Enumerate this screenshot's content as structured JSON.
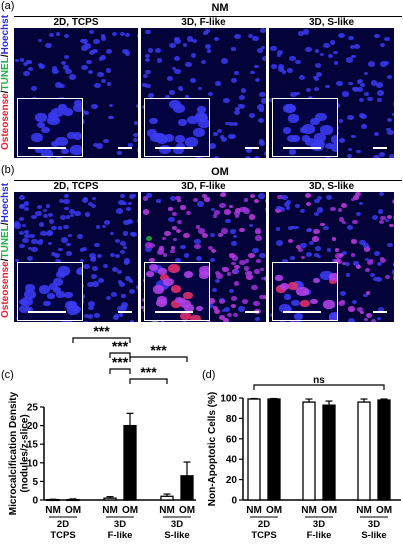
{
  "colors": {
    "osteosense": "#e8202a",
    "tunel": "#20b040",
    "hoechst": "#2b2bd8",
    "nucleus": "#3a3af0",
    "background": "#03033a",
    "bar_filled": "#000000",
    "bar_open": "#ffffff"
  },
  "panel_a": {
    "letter": "(a)",
    "condition": "NM",
    "stain_label": {
      "osteosense": "Osteosense",
      "slash1": "/",
      "tunel": "TUNEL",
      "slash2": "/",
      "hoechst": "Hoechst"
    },
    "images": [
      {
        "title": "2D, TCPS",
        "nucleus_density": 0.55,
        "red_signal": 0.0,
        "green_signal": 0.0
      },
      {
        "title": "3D, F-like",
        "nucleus_density": 0.6,
        "red_signal": 0.0,
        "green_signal": 0.0
      },
      {
        "title": "3D, S-like",
        "nucleus_density": 0.6,
        "red_signal": 0.0,
        "green_signal": 0.0
      }
    ]
  },
  "panel_b": {
    "letter": "(b)",
    "condition": "OM",
    "stain_label": {
      "osteosense": "Osteosense",
      "slash1": "/",
      "tunel": "TUNEL",
      "slash2": "/",
      "hoechst": "Hoechst"
    },
    "images": [
      {
        "title": "2D, TCPS",
        "nucleus_density": 0.9,
        "red_signal": 0.0,
        "green_signal": 0.0
      },
      {
        "title": "3D, F-like",
        "nucleus_density": 1.0,
        "red_signal": 0.8,
        "green_signal": 0.05
      },
      {
        "title": "3D, S-like",
        "nucleus_density": 0.8,
        "red_signal": 0.5,
        "green_signal": 0.0
      }
    ]
  },
  "chart_data": [
    {
      "type": "bar",
      "panel": "(c)",
      "ylabel": "Microcalcification Density (nodules/z-slice)",
      "ylim": [
        0,
        25
      ],
      "yticks": [
        0,
        5,
        10,
        15,
        20,
        25
      ],
      "categories": [
        "NM",
        "OM",
        "NM",
        "OM",
        "NM",
        "OM"
      ],
      "groups": [
        {
          "line1": "2D",
          "line2": "TCPS"
        },
        {
          "line1": "3D",
          "line2": "F-like"
        },
        {
          "line1": "3D",
          "line2": "S-like"
        }
      ],
      "values": [
        0.1,
        0.1,
        0.5,
        20,
        1.0,
        6.5
      ],
      "errors": [
        0.1,
        0.2,
        0.4,
        3.3,
        0.6,
        3.7
      ],
      "fills": [
        "open",
        "filled",
        "open",
        "filled",
        "open",
        "filled"
      ],
      "significance": [
        {
          "from": 1,
          "to": 3,
          "label": "***"
        },
        {
          "from": 2,
          "to": 3,
          "label": "***"
        },
        {
          "from": 3,
          "to": 5,
          "label": "***"
        },
        {
          "from": 2,
          "to": 3,
          "label": "***"
        },
        {
          "from": 3,
          "to": 4,
          "label": "***"
        }
      ]
    },
    {
      "type": "bar",
      "panel": "(d)",
      "ylabel": "Non-Apoptotic Cells (%)",
      "ylim": [
        0,
        100
      ],
      "yticks": [
        0,
        20,
        40,
        60,
        80,
        100
      ],
      "categories": [
        "NM",
        "OM",
        "NM",
        "OM",
        "NM",
        "OM"
      ],
      "groups": [
        {
          "line1": "2D",
          "line2": "TCPS"
        },
        {
          "line1": "3D",
          "line2": "F-like"
        },
        {
          "line1": "3D",
          "line2": "S-like"
        }
      ],
      "values": [
        99,
        99,
        96,
        93,
        96,
        98
      ],
      "errors": [
        0.5,
        0.5,
        3,
        4,
        3,
        1
      ],
      "fills": [
        "open",
        "filled",
        "open",
        "filled",
        "open",
        "filled"
      ],
      "significance": [
        {
          "from": 0,
          "to": 5,
          "label": "ns"
        }
      ]
    }
  ]
}
